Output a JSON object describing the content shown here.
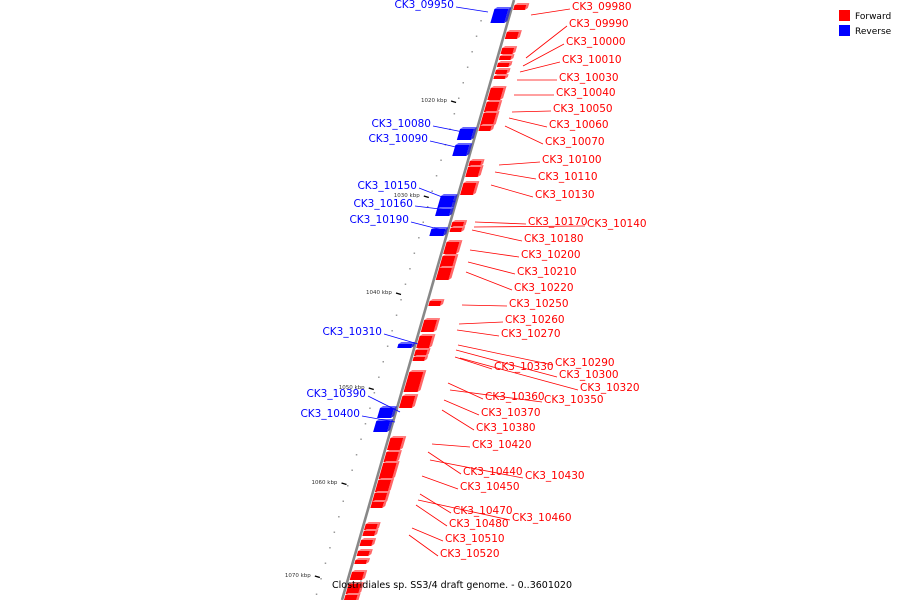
{
  "legend": [
    {
      "label": "Forward",
      "color": "#ff0000"
    },
    {
      "label": "Reverse",
      "color": "#0000ff"
    }
  ],
  "colors": {
    "forward": "#ff0000",
    "reverse": "#0000ff",
    "backbone": "#888888"
  },
  "footer": "Clostridiales sp. SS3/4 draft genome. - 0..3601020",
  "ticks": [
    "1020 kbp",
    "1030 kbp",
    "1040 kbp",
    "1050 kbp",
    "1060 kbp",
    "1070 kbp"
  ],
  "reverse_genes": [
    "CK3_09950",
    "CK3_10080",
    "CK3_10090",
    "CK3_10150",
    "CK3_10160",
    "CK3_10190",
    "CK3_10310",
    "CK3_10390",
    "CK3_10400"
  ],
  "forward_genes": [
    "CK3_09980",
    "CK3_09990",
    "CK3_10000",
    "CK3_10010",
    "CK3_10030",
    "CK3_10040",
    "CK3_10050",
    "CK3_10060",
    "CK3_10070",
    "CK3_10100",
    "CK3_10110",
    "CK3_10130",
    "CK3_10170",
    "CK3_10140",
    "CK3_10180",
    "CK3_10200",
    "CK3_10210",
    "CK3_10220",
    "CK3_10250",
    "CK3_10260",
    "CK3_10270",
    "CK3_10330",
    "CK3_10290",
    "CK3_10300",
    "CK3_10320",
    "CK3_10360",
    "CK3_10350",
    "CK3_10370",
    "CK3_10380",
    "CK3_10420",
    "CK3_10440",
    "CK3_10430",
    "CK3_10450",
    "CK3_10470",
    "CK3_10460",
    "CK3_10480",
    "CK3_10510",
    "CK3_10520"
  ]
}
